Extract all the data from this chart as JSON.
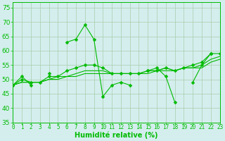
{
  "x": [
    0,
    1,
    2,
    3,
    4,
    5,
    6,
    7,
    8,
    9,
    10,
    11,
    12,
    13,
    14,
    15,
    16,
    17,
    18,
    19,
    20,
    21,
    22,
    23
  ],
  "line1": [
    48,
    51,
    48,
    null,
    52,
    null,
    63,
    64,
    69,
    64,
    44,
    48,
    49,
    48,
    null,
    53,
    54,
    51,
    42,
    null,
    49,
    55,
    59,
    null
  ],
  "line2": [
    48,
    50,
    49,
    49,
    51,
    51,
    53,
    54,
    55,
    55,
    54,
    52,
    52,
    52,
    52,
    53,
    53,
    54,
    53,
    54,
    55,
    56,
    59,
    59
  ],
  "line3": [
    48,
    49,
    49,
    49,
    50,
    51,
    51,
    52,
    53,
    53,
    53,
    52,
    52,
    52,
    52,
    53,
    53,
    54,
    53,
    54,
    54,
    55,
    57,
    58
  ],
  "line4": [
    48,
    49,
    49,
    49,
    50,
    50,
    51,
    51,
    52,
    52,
    52,
    52,
    52,
    52,
    52,
    52,
    53,
    53,
    53,
    54,
    54,
    54,
    56,
    57
  ],
  "line_color": "#00bb00",
  "background_color": "#d4eeee",
  "grid_color": "#aaccaa",
  "xlabel": "Humidité relative (%)",
  "xlim": [
    0,
    23
  ],
  "ylim": [
    35,
    77
  ],
  "yticks": [
    35,
    40,
    45,
    50,
    55,
    60,
    65,
    70,
    75
  ],
  "xticks": [
    0,
    1,
    2,
    3,
    4,
    5,
    6,
    7,
    8,
    9,
    10,
    11,
    12,
    13,
    14,
    15,
    16,
    17,
    18,
    19,
    20,
    21,
    22,
    23
  ],
  "xlabel_fontsize": 7,
  "tick_fontsize": 5.5,
  "ytick_fontsize": 6.5
}
